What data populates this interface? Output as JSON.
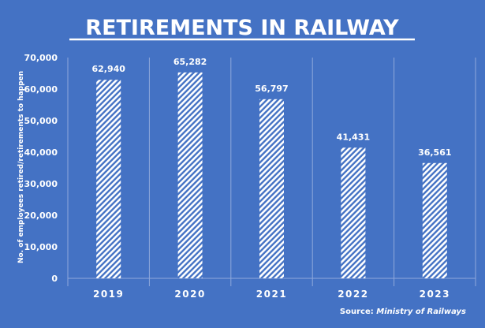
{
  "chart_data": {
    "type": "bar",
    "title": "RETIREMENTS  IN RAILWAY",
    "ylabel": "No. of employees retired/retirements to happen",
    "xlabel": "",
    "categories": [
      "2019",
      "2020",
      "2021",
      "2022",
      "2023"
    ],
    "values": [
      62940,
      65282,
      56797,
      41431,
      36561
    ],
    "value_labels": [
      "62,940",
      "65,282",
      "56,797",
      "41,431",
      "36,561"
    ],
    "ylim": [
      0,
      70000
    ],
    "yticks": [
      0,
      10000,
      20000,
      30000,
      40000,
      50000,
      60000,
      70000
    ],
    "ytick_labels": [
      "0",
      "10,000",
      "20,000",
      "30,000",
      "40,000",
      "50,000",
      "60,000",
      "70,000"
    ],
    "grid": "vertical separators between categories",
    "bar_fill": "white diagonal hatch",
    "source_prefix": "Source:",
    "source_name": "Ministry of Railways",
    "colors": {
      "background": "#4472c4",
      "bars": "#ffffff",
      "text": "#ffffff",
      "gridlines": "#8fa8db"
    }
  }
}
